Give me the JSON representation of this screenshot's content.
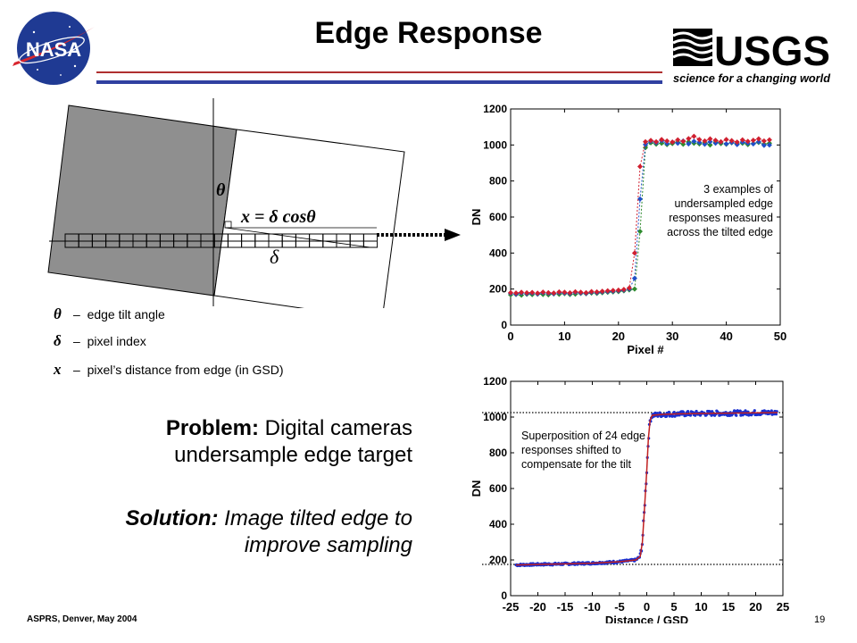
{
  "title": "Edge Response",
  "logos": {
    "nasa": "NASA",
    "usgs_name": "USGS",
    "usgs_tagline": "science for a changing world"
  },
  "diagram": {
    "theta_symbol": "θ",
    "delta_symbol": "δ",
    "formula_x": "x",
    "formula_eq": " = ",
    "formula_rhs": "δ cosθ"
  },
  "legend": [
    {
      "symbol": "θ",
      "dash": "–",
      "text": "edge tilt angle"
    },
    {
      "symbol": "δ",
      "dash": "–",
      "text": "pixel index"
    },
    {
      "symbol": "x",
      "dash": "–",
      "text": "pixel’s distance from edge (in GSD)"
    }
  ],
  "problem": {
    "label": "Problem:",
    "text": " Digital cameras undersample edge target"
  },
  "solution": {
    "label": "Solution:",
    "text": " Image tilted edge to improve sampling"
  },
  "footer": {
    "left": "ASPRS, Denver, May 2004",
    "page": "19"
  },
  "chart_data": [
    {
      "type": "scatter",
      "xlabel": "Pixel #",
      "ylabel": "DN",
      "xlim": [
        0,
        50
      ],
      "ylim": [
        0,
        1200
      ],
      "xticks": [
        0,
        10,
        20,
        30,
        40,
        50
      ],
      "yticks": [
        0,
        200,
        400,
        600,
        800,
        1000,
        1200
      ],
      "annotation": "3 examples of undersampled edge responses measured across the tilted edge",
      "series": [
        {
          "color": "#2e8b2e",
          "points": [
            [
              0,
              168
            ],
            [
              1,
              170
            ],
            [
              2,
              166
            ],
            [
              3,
              171
            ],
            [
              4,
              169
            ],
            [
              5,
              172
            ],
            [
              6,
              170
            ],
            [
              7,
              168
            ],
            [
              8,
              173
            ],
            [
              9,
              171
            ],
            [
              10,
              175
            ],
            [
              11,
              170
            ],
            [
              12,
              172
            ],
            [
              13,
              176
            ],
            [
              14,
              174
            ],
            [
              15,
              178
            ],
            [
              16,
              176
            ],
            [
              17,
              180
            ],
            [
              18,
              182
            ],
            [
              19,
              184
            ],
            [
              20,
              186
            ],
            [
              21,
              190
            ],
            [
              22,
              195
            ],
            [
              23,
              200
            ],
            [
              24,
              520
            ],
            [
              25,
              985
            ],
            [
              26,
              1012
            ],
            [
              27,
              1005
            ],
            [
              28,
              1010
            ],
            [
              29,
              1002
            ],
            [
              30,
              1008
            ],
            [
              31,
              1015
            ],
            [
              32,
              1004
            ],
            [
              33,
              1018
            ],
            [
              34,
              1010
            ],
            [
              35,
              1006
            ],
            [
              36,
              1012
            ],
            [
              37,
              1000
            ],
            [
              38,
              1015
            ],
            [
              39,
              1008
            ],
            [
              40,
              1004
            ],
            [
              41,
              1012
            ],
            [
              42,
              1006
            ],
            [
              43,
              1010
            ],
            [
              44,
              1002
            ],
            [
              45,
              1008
            ],
            [
              46,
              1014
            ],
            [
              47,
              1004
            ],
            [
              48,
              1010
            ]
          ]
        },
        {
          "color": "#2050c8",
          "points": [
            [
              0,
              176
            ],
            [
              1,
              172
            ],
            [
              2,
              178
            ],
            [
              3,
              174
            ],
            [
              4,
              177
            ],
            [
              5,
              173
            ],
            [
              6,
              179
            ],
            [
              7,
              176
            ],
            [
              8,
              174
            ],
            [
              9,
              180
            ],
            [
              10,
              178
            ],
            [
              11,
              175
            ],
            [
              12,
              181
            ],
            [
              13,
              178
            ],
            [
              14,
              176
            ],
            [
              15,
              182
            ],
            [
              16,
              180
            ],
            [
              17,
              184
            ],
            [
              18,
              186
            ],
            [
              19,
              188
            ],
            [
              20,
              190
            ],
            [
              21,
              194
            ],
            [
              22,
              200
            ],
            [
              23,
              260
            ],
            [
              24,
              700
            ],
            [
              25,
              1002
            ],
            [
              26,
              1020
            ],
            [
              27,
              1012
            ],
            [
              28,
              1024
            ],
            [
              29,
              1008
            ],
            [
              30,
              1016
            ],
            [
              31,
              1010
            ],
            [
              32,
              1022
            ],
            [
              33,
              1006
            ],
            [
              34,
              1020
            ],
            [
              35,
              1014
            ],
            [
              36,
              1004
            ],
            [
              37,
              1018
            ],
            [
              38,
              1010
            ],
            [
              39,
              1016
            ],
            [
              40,
              1006
            ],
            [
              41,
              1014
            ],
            [
              42,
              1002
            ],
            [
              43,
              1016
            ],
            [
              44,
              1010
            ],
            [
              45,
              1006
            ],
            [
              46,
              1018
            ],
            [
              47,
              998
            ],
            [
              48,
              1000
            ]
          ]
        },
        {
          "color": "#d02030",
          "points": [
            [
              0,
              180
            ],
            [
              1,
              178
            ],
            [
              2,
              182
            ],
            [
              3,
              179
            ],
            [
              4,
              181
            ],
            [
              5,
              177
            ],
            [
              6,
              183
            ],
            [
              7,
              180
            ],
            [
              8,
              178
            ],
            [
              9,
              184
            ],
            [
              10,
              182
            ],
            [
              11,
              179
            ],
            [
              12,
              185
            ],
            [
              13,
              182
            ],
            [
              14,
              180
            ],
            [
              15,
              186
            ],
            [
              16,
              184
            ],
            [
              17,
              188
            ],
            [
              18,
              190
            ],
            [
              19,
              192
            ],
            [
              20,
              194
            ],
            [
              21,
              198
            ],
            [
              22,
              206
            ],
            [
              23,
              400
            ],
            [
              24,
              880
            ],
            [
              25,
              1018
            ],
            [
              26,
              1025
            ],
            [
              27,
              1018
            ],
            [
              28,
              1030
            ],
            [
              29,
              1022
            ],
            [
              30,
              1016
            ],
            [
              31,
              1028
            ],
            [
              32,
              1020
            ],
            [
              33,
              1035
            ],
            [
              34,
              1048
            ],
            [
              35,
              1030
            ],
            [
              36,
              1022
            ],
            [
              37,
              1034
            ],
            [
              38,
              1026
            ],
            [
              39,
              1018
            ],
            [
              40,
              1030
            ],
            [
              41,
              1024
            ],
            [
              42,
              1016
            ],
            [
              43,
              1028
            ],
            [
              44,
              1020
            ],
            [
              45,
              1026
            ],
            [
              46,
              1034
            ],
            [
              47,
              1022
            ],
            [
              48,
              1028
            ]
          ]
        }
      ]
    },
    {
      "type": "scatter",
      "xlabel": "Distance / GSD",
      "ylabel": "DN",
      "xlim": [
        -25,
        25
      ],
      "ylim": [
        0,
        1200
      ],
      "xticks": [
        -25,
        -20,
        -15,
        -10,
        -5,
        0,
        5,
        10,
        15,
        20,
        25
      ],
      "yticks": [
        0,
        200,
        400,
        600,
        800,
        1000,
        1200
      ],
      "reference_lines": [
        175,
        1025
      ],
      "annotation": "Superposition of 24 edge responses shifted to compensate for the tilt",
      "points_color": "#1a2fd0",
      "fit_color": "#c02020",
      "fit_curve": [
        [
          -24,
          172
        ],
        [
          -20,
          175
        ],
        [
          -15,
          178
        ],
        [
          -10,
          182
        ],
        [
          -5,
          190
        ],
        [
          -2,
          200
        ],
        [
          -1.2,
          220
        ],
        [
          -0.8,
          300
        ],
        [
          -0.4,
          500
        ],
        [
          0,
          700
        ],
        [
          0.3,
          880
        ],
        [
          0.6,
          980
        ],
        [
          1,
          1010
        ],
        [
          3,
          1015
        ],
        [
          6,
          1018
        ],
        [
          10,
          1020
        ],
        [
          15,
          1022
        ],
        [
          20,
          1024
        ],
        [
          24,
          1025
        ]
      ]
    }
  ]
}
